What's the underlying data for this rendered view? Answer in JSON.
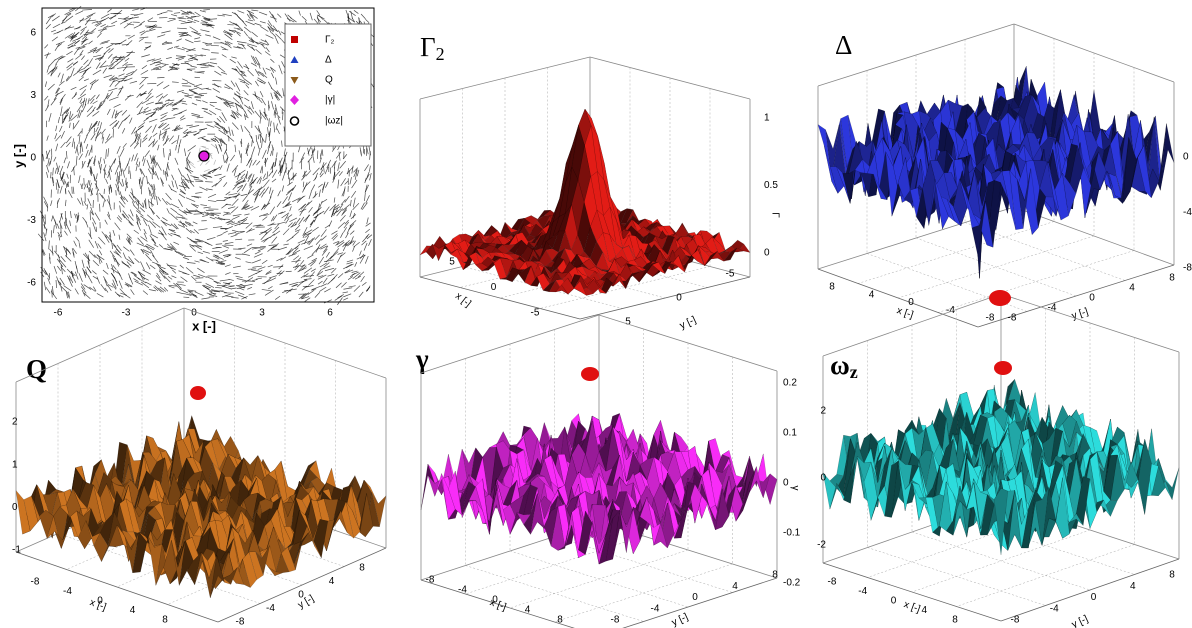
{
  "panels": [
    {
      "xlabel": "x [-]",
      "ylabel": "y [-]",
      "xticks": [
        -6,
        -3,
        0,
        3,
        6
      ],
      "yticks": [
        6,
        3,
        0,
        -3,
        -6
      ],
      "legend": [
        "Γ₂",
        "Δ",
        "Q",
        "|γ|",
        "|ωz|"
      ]
    },
    {
      "title": "Γ",
      "title_sub": "2",
      "zlabel": "Γ",
      "zticks": [
        1,
        0.5,
        0
      ],
      "xticks": [
        5,
        0,
        -5
      ],
      "yticks": [
        5,
        0,
        -5
      ],
      "xlabel": "x [-]",
      "ylabel": "y [-]"
    },
    {
      "title": "Δ",
      "zticks": [
        0,
        -4,
        -8
      ],
      "xticks": [
        8,
        4,
        0,
        -4,
        -8
      ],
      "yticks": [
        -8,
        -4,
        0,
        4,
        8
      ],
      "xlabel": "x [-]",
      "ylabel": "y [-]"
    },
    {
      "title": "Q",
      "zticks": [
        2,
        1,
        0,
        -1
      ],
      "xticks": [
        -8,
        -4,
        0,
        4,
        8
      ],
      "yticks": [
        -8,
        -4,
        0,
        4,
        8
      ],
      "xlabel": "x [-]",
      "ylabel": "y [-]"
    },
    {
      "title": "γ",
      "zlabel": "γ",
      "zticks": [
        0.2,
        0.1,
        0,
        -0.1,
        -0.2
      ],
      "xticks": [
        -8,
        -4,
        0,
        4,
        8
      ],
      "yticks": [
        -8,
        -4,
        0,
        4,
        8
      ],
      "xlabel": "x [-]",
      "ylabel": "y [-]"
    },
    {
      "title": "ω",
      "title_sub": "z",
      "zticks": [
        2,
        0,
        -2
      ],
      "xticks": [
        -8,
        -4,
        0,
        4,
        8
      ],
      "yticks": [
        -8,
        -4,
        0,
        4,
        8
      ],
      "xlabel": "x [-]",
      "ylabel": "y [-]"
    }
  ]
}
